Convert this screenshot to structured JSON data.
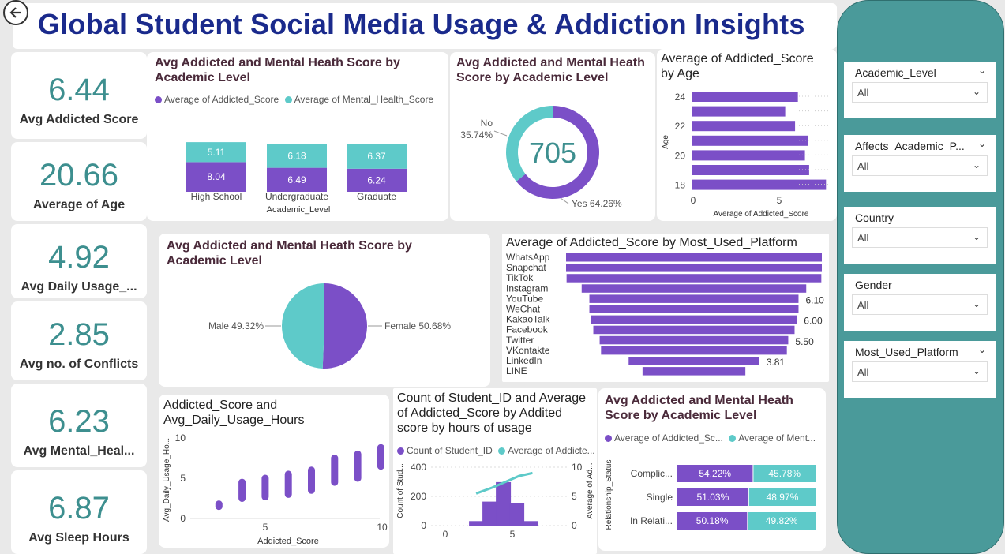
{
  "header": {
    "title": "Global Student Social Media Usage & Addiction Insights",
    "back_icon": "back-arrow-icon"
  },
  "kpis": [
    {
      "value": "6.44",
      "label": "Avg Addicted Score"
    },
    {
      "value": "20.66",
      "label": "Average of Age"
    },
    {
      "value": "4.92",
      "label": "Avg Daily Usage_..."
    },
    {
      "value": "2.85",
      "label": "Avg no. of Conflicts"
    },
    {
      "value": "6.23",
      "label": "Avg  Mental_Heal..."
    },
    {
      "value": "6.87",
      "label": "Avg Sleep Hours"
    }
  ],
  "colors": {
    "purple": "#7b4fc7",
    "teal": "#5ecac9",
    "title_blue": "#1a2a8c",
    "kpi_teal": "#3d8f8f"
  },
  "stacked_bar": {
    "title": "Avg Addicted and Mental Heath Score by Academic Level",
    "legend": [
      "Average of Addicted_Score",
      "Average of Mental_Health_Score"
    ],
    "xlabel": "Academic_Level",
    "categories": [
      "High School",
      "Undergraduate",
      "Graduate"
    ],
    "addicted": [
      8.04,
      6.49,
      6.24
    ],
    "mental": [
      5.11,
      6.18,
      6.37
    ],
    "addicted_labels": [
      "8.04",
      "6.49",
      "6.24"
    ],
    "mental_labels": [
      "5.11",
      "6.18",
      "6.37"
    ]
  },
  "donut": {
    "title": "Avg Addicted and Mental Heath Score by Academic Level",
    "center": "705",
    "no_label": "No",
    "no_pct": "35.74%",
    "yes_label": "Yes 64.26%",
    "yes": 64.26,
    "no": 35.74
  },
  "age_chart": {
    "title": "Average of Addicted_Score by Age",
    "ylabel": "Age",
    "xlabel": "Average of Addicted_Score",
    "y_ticks": [
      "24",
      "22",
      "20",
      "18"
    ],
    "x_ticks": [
      "0",
      "5"
    ],
    "values": [
      7.5,
      6.6,
      7.3,
      8.2,
      8.0,
      8.3,
      9.5
    ]
  },
  "pie": {
    "title": "Avg Addicted and Mental Heath Score by Academic Level",
    "male_label": "Male 49.32%",
    "female_label": "Female 50.68%",
    "male": 49.32,
    "female": 50.68
  },
  "platform_chart": {
    "title": "Average of Addicted_Score by Most_Used_Platform",
    "platforms": [
      "WhatsApp",
      "Snapchat",
      "TikTok",
      "Instagram",
      "YouTube",
      "WeChat",
      "KakaoTalk",
      "Facebook",
      "Twitter",
      "VKontakte",
      "LinkedIn",
      "LINE"
    ],
    "values": [
      7.46,
      7.46,
      7.43,
      6.55,
      6.1,
      6.1,
      6.0,
      5.87,
      5.5,
      5.42,
      3.81,
      3.0
    ],
    "labels": [
      "",
      "",
      "",
      "",
      "6.10",
      "",
      "6.00",
      "",
      "5.50",
      "",
      "3.81",
      ""
    ]
  },
  "scatter": {
    "title": "Addicted_Score and Avg_Daily_Usage_Hours",
    "xlabel": "Addicted_Score",
    "ylabel": "Avg_Daily_Usage_Ho...",
    "y_ticks": [
      "10",
      "5",
      "0"
    ],
    "x_ticks": [
      "5",
      "10"
    ],
    "points": [
      [
        2,
        1.5,
        1.8
      ],
      [
        3,
        2.5,
        4.5
      ],
      [
        4,
        2.7,
        5
      ],
      [
        5,
        3.0,
        5.5
      ],
      [
        6,
        3.5,
        6.0
      ],
      [
        7,
        4.5,
        7.5
      ],
      [
        8,
        5,
        8.0
      ],
      [
        9,
        6.5,
        8.8
      ]
    ]
  },
  "combo": {
    "title": "Count of Student_ID and Average of Addicted_Score by Addited score by hours of usage",
    "legend": [
      "Count of Student_ID",
      "Average of Addicte..."
    ],
    "ylabel_left": "Count of Stud...",
    "ylabel_right": "Average of Ad...",
    "y_left_ticks": [
      "400",
      "200",
      "0"
    ],
    "y_right_ticks": [
      "10",
      "5",
      "0"
    ],
    "x_ticks": [
      "0",
      "5"
    ],
    "bars": [
      {
        "x": 2.3,
        "v": 30
      },
      {
        "x": 3.3,
        "v": 160
      },
      {
        "x": 4.3,
        "v": 290
      },
      {
        "x": 5.3,
        "v": 150
      },
      {
        "x": 6.3,
        "v": 30
      }
    ],
    "line": [
      [
        2.3,
        5.5
      ],
      [
        3.5,
        6.5
      ],
      [
        4.5,
        7.5
      ],
      [
        5.5,
        8.5
      ],
      [
        6.5,
        9
      ]
    ]
  },
  "rel_chart": {
    "title": "Avg Addicted and Mental Heath Score by Academic Level",
    "legend": [
      "Average of Addicted_Sc...",
      "Average of Ment..."
    ],
    "ylabel": "Relationship_Status",
    "categories": [
      "Complic...",
      "Single",
      "In Relati..."
    ],
    "addicted": [
      54.22,
      51.03,
      50.18
    ],
    "mental": [
      45.78,
      48.97,
      49.82
    ],
    "addicted_labels": [
      "54.22%",
      "51.03%",
      "50.18%"
    ],
    "mental_labels": [
      "45.78%",
      "48.97%",
      "49.82%"
    ]
  },
  "slicers": [
    {
      "label": "Academic_Level",
      "value": "All"
    },
    {
      "label": "Affects_Academic_P...",
      "value": "All"
    },
    {
      "label": "Country",
      "value": "All"
    },
    {
      "label": "Gender",
      "value": "All"
    },
    {
      "label": "Most_Used_Platform",
      "value": "All"
    }
  ]
}
